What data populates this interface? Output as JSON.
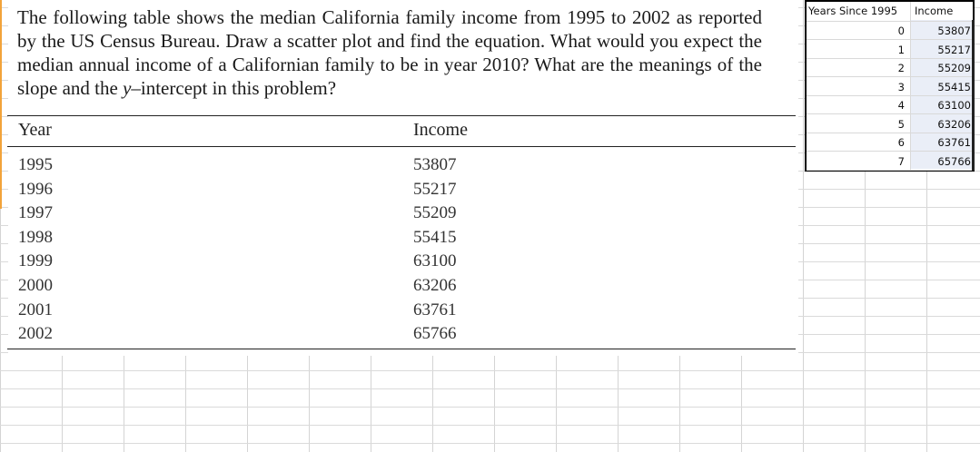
{
  "problem": {
    "text_before_y": "The following table shows the median California family income from 1995 to 2002 as reported by the US Census Bureau. Draw a scatter plot and find the equation. What would you expect the median annual income of a Californian family to be in year 2010? What are the meanings of the slope and the ",
    "y_variable": "y",
    "text_after_y": "–intercept in this problem?"
  },
  "table": {
    "headers": [
      "Year",
      "Income"
    ],
    "rows": [
      {
        "year": "1995",
        "income": "53807"
      },
      {
        "year": "1996",
        "income": "55217"
      },
      {
        "year": "1997",
        "income": "55209"
      },
      {
        "year": "1998",
        "income": "55415"
      },
      {
        "year": "1999",
        "income": "63100"
      },
      {
        "year": "2000",
        "income": "63206"
      },
      {
        "year": "2001",
        "income": "63761"
      },
      {
        "year": "2002",
        "income": "65766"
      }
    ]
  },
  "spreadsheet": {
    "headers": [
      "Years Since 1995",
      "Income"
    ],
    "rows": [
      {
        "a": "0",
        "b": "53807"
      },
      {
        "a": "1",
        "b": "55217"
      },
      {
        "a": "2",
        "b": "55209"
      },
      {
        "a": "3",
        "b": "55415"
      },
      {
        "a": "4",
        "b": "63100"
      },
      {
        "a": "5",
        "b": "63206"
      },
      {
        "a": "6",
        "b": "63761"
      },
      {
        "a": "7",
        "b": "65766"
      }
    ]
  }
}
